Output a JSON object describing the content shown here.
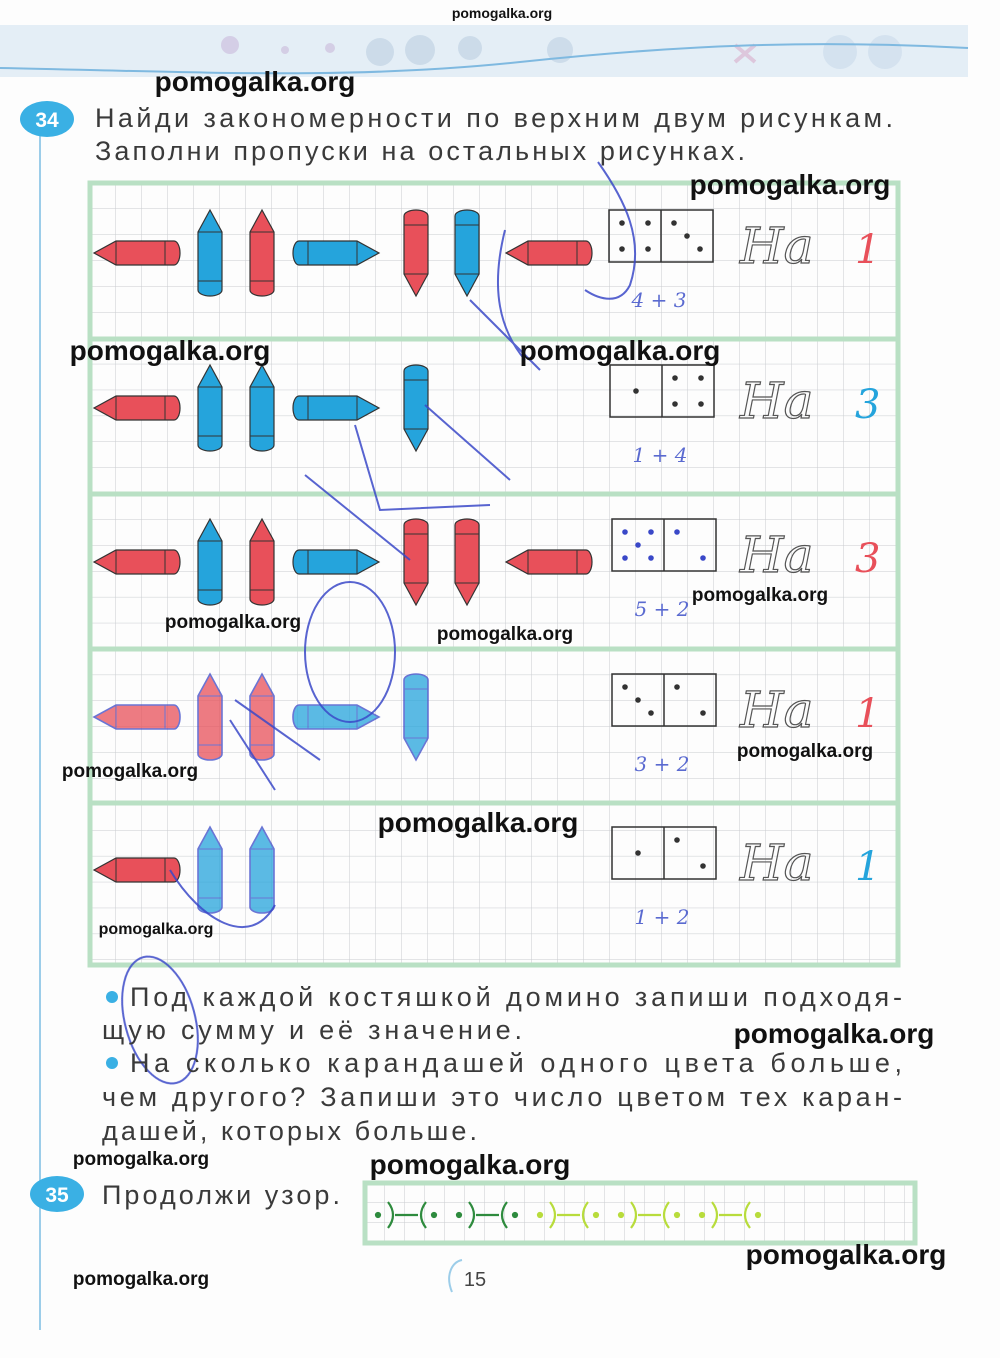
{
  "colors": {
    "red": "#e8505a",
    "blue": "#25a4dc",
    "grid": "#c9ccd0",
    "frame": "#b9e0c4",
    "pen": "#3a48c8",
    "dark_green": "#2e8b3e",
    "light_green": "#b8dc3c"
  },
  "task34": {
    "number": "34",
    "instruction": [
      "Найди закономерности по верхним двум рисункам.",
      "Заполни пропуски на остальных рисунках."
    ],
    "rows": [
      {
        "pencils": [
          {
            "color": "red",
            "dir": "left"
          },
          {
            "color": "blue",
            "dir": "up"
          },
          {
            "color": "red",
            "dir": "up"
          },
          {
            "color": "blue",
            "dir": "right"
          },
          {
            "color": "red",
            "dir": "down"
          },
          {
            "color": "blue",
            "dir": "down"
          },
          {
            "color": "red",
            "dir": "left"
          }
        ],
        "domino": {
          "left": 4,
          "right": 3
        },
        "sum": "4 + 3",
        "answer_prefix": "На",
        "answer": "1",
        "answer_color": "red"
      },
      {
        "pencils": [
          {
            "color": "red",
            "dir": "left"
          },
          {
            "color": "blue",
            "dir": "up"
          },
          {
            "color": "blue",
            "dir": "up"
          },
          {
            "color": "blue",
            "dir": "right"
          },
          {
            "color": "blue",
            "dir": "down"
          },
          null,
          null
        ],
        "domino": {
          "left": 1,
          "right": 4
        },
        "sum": "1 + 4",
        "answer_prefix": "На",
        "answer": "3",
        "answer_color": "blue"
      },
      {
        "pencils": [
          {
            "color": "red",
            "dir": "left"
          },
          {
            "color": "blue",
            "dir": "up"
          },
          {
            "color": "red",
            "dir": "up"
          },
          {
            "color": "blue",
            "dir": "right"
          },
          {
            "color": "red",
            "dir": "down"
          },
          {
            "color": "red",
            "dir": "down"
          },
          {
            "color": "red",
            "dir": "left"
          }
        ],
        "domino": {
          "left": 5,
          "right": 2
        },
        "sum": "5 + 2",
        "answer_prefix": "На",
        "answer": "3",
        "answer_color": "red"
      },
      {
        "pencils": [
          {
            "color": "red",
            "dir": "left",
            "hand": true
          },
          {
            "color": "red",
            "dir": "up",
            "hand": true
          },
          {
            "color": "red",
            "dir": "up",
            "hand": true
          },
          {
            "color": "blue",
            "dir": "right",
            "hand": true
          },
          {
            "color": "blue",
            "dir": "down",
            "hand": true
          },
          null,
          null
        ],
        "domino": {
          "left": 3,
          "right": 2
        },
        "sum": "3 + 2",
        "answer_prefix": "На",
        "answer": "1",
        "answer_color": "red"
      },
      {
        "pencils": [
          {
            "color": "red",
            "dir": "left"
          },
          {
            "color": "blue",
            "dir": "up",
            "hand": true
          },
          {
            "color": "blue",
            "dir": "up",
            "hand": true
          },
          null,
          null,
          null,
          null
        ],
        "domino": {
          "left": 1,
          "right": 2
        },
        "sum": "1 + 2",
        "answer_prefix": "На",
        "answer": "1",
        "answer_color": "blue"
      }
    ],
    "bullets": [
      [
        "Под каждой костяшкой домино запиши подходя-",
        "щую сумму и её значение."
      ],
      [
        "На сколько карандашей одного цвета больше,",
        "чем другого? Запиши это число цветом тех каран-",
        "дашей, которых больше."
      ]
    ]
  },
  "task35": {
    "number": "35",
    "instruction": "Продолжи узор.",
    "pattern": [
      "dark_green",
      "dark_green",
      "light_green",
      "light_green",
      "light_green"
    ]
  },
  "page_number": "15",
  "watermarks": [
    "pomogalka.org",
    "pomogalka.org",
    "pomogalka.org",
    "pomogalka.org",
    "pomogalka.org",
    "pomogalka.org",
    "pomogalka.org",
    "pomogalka.org",
    "pomogalka.org",
    "pomogalka.org",
    "pomogalka.org",
    "pomogalka.org",
    "pomogalka.org",
    "pomogalka.org",
    "pomogalka.org",
    "pomogalka.org",
    "pomogalka.org"
  ]
}
